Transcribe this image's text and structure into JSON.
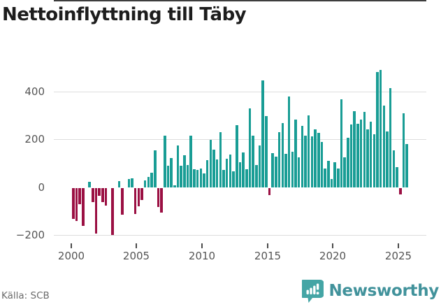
{
  "title": "Nettoinflyttning till Täby",
  "source": "Källa: SCB",
  "branding": {
    "wordmark": "Newsworthy"
  },
  "colors": {
    "positive_bar": "#199d95",
    "negative_bar": "#9b1043",
    "title_text": "#1d1d1d",
    "axis_text": "#555555",
    "gridline": "#dddddd",
    "zero_line": "#3d3d3d",
    "source_text": "#6b6b6b",
    "brand_teal": "#41929b",
    "brand_icon": "#44a5a5",
    "background": "#ffffff"
  },
  "chart_data": {
    "type": "bar",
    "title": "Nettoinflyttning till Täby",
    "frequency": "quarterly",
    "grid": "horizontal",
    "ylim": [
      -230,
      510
    ],
    "y_tick_values": [
      400,
      200,
      0,
      -200
    ],
    "y_tick_labels": [
      "400",
      "200",
      "0",
      "−200"
    ],
    "x_tick_labels": [
      "2000",
      "2005",
      "2010",
      "2015",
      "2020",
      "2025"
    ],
    "categories": [
      "2000Q1",
      "2000Q2",
      "2000Q3",
      "2000Q4",
      "2001Q1",
      "2001Q2",
      "2001Q3",
      "2001Q4",
      "2002Q1",
      "2002Q2",
      "2002Q3",
      "2002Q4",
      "2003Q1",
      "2003Q2",
      "2003Q3",
      "2003Q4",
      "2004Q1",
      "2004Q2",
      "2004Q3",
      "2004Q4",
      "2005Q1",
      "2005Q2",
      "2005Q3",
      "2005Q4",
      "2006Q1",
      "2006Q2",
      "2006Q3",
      "2006Q4",
      "2007Q1",
      "2007Q2",
      "2007Q3",
      "2007Q4",
      "2008Q1",
      "2008Q2",
      "2008Q3",
      "2008Q4",
      "2009Q1",
      "2009Q2",
      "2009Q3",
      "2009Q4",
      "2010Q1",
      "2010Q2",
      "2010Q3",
      "2010Q4",
      "2011Q1",
      "2011Q2",
      "2011Q3",
      "2011Q4",
      "2012Q1",
      "2012Q2",
      "2012Q3",
      "2012Q4",
      "2013Q1",
      "2013Q2",
      "2013Q3",
      "2013Q4",
      "2014Q1",
      "2014Q2",
      "2014Q3",
      "2014Q4",
      "2015Q1",
      "2015Q2",
      "2015Q3",
      "2015Q4",
      "2016Q1",
      "2016Q2",
      "2016Q3",
      "2016Q4",
      "2017Q1",
      "2017Q2",
      "2017Q3",
      "2017Q4",
      "2018Q1",
      "2018Q2",
      "2018Q3",
      "2018Q4",
      "2019Q1",
      "2019Q2",
      "2019Q3",
      "2019Q4",
      "2020Q1",
      "2020Q2",
      "2020Q3",
      "2020Q4",
      "2021Q1",
      "2021Q2",
      "2021Q3",
      "2021Q4",
      "2022Q1",
      "2022Q2",
      "2022Q3",
      "2022Q4",
      "2023Q1",
      "2023Q2",
      "2023Q3",
      "2023Q4",
      "2024Q1",
      "2024Q2",
      "2024Q3",
      "2024Q4",
      "2025Q1",
      "2025Q2",
      "2025Q3"
    ],
    "values": [
      -128,
      -136,
      -67,
      -158,
      0,
      23,
      -59,
      -190,
      -32,
      -59,
      -72,
      0,
      -195,
      0,
      25,
      -111,
      0,
      36,
      38,
      -108,
      -75,
      -50,
      30,
      45,
      60,
      156,
      -78,
      -102,
      215,
      91,
      124,
      10,
      176,
      91,
      134,
      93,
      215,
      75,
      73,
      78,
      58,
      114,
      198,
      159,
      117,
      231,
      73,
      119,
      137,
      68,
      261,
      104,
      145,
      75,
      329,
      217,
      95,
      176,
      447,
      298,
      -30,
      143,
      130,
      231,
      270,
      141,
      380,
      149,
      283,
      127,
      258,
      217,
      300,
      212,
      244,
      227,
      190,
      78,
      112,
      36,
      105,
      80,
      369,
      125,
      207,
      262,
      319,
      266,
      285,
      315,
      244,
      275,
      221,
      483,
      490,
      341,
      234,
      415,
      156,
      85,
      -25,
      309,
      180
    ]
  }
}
